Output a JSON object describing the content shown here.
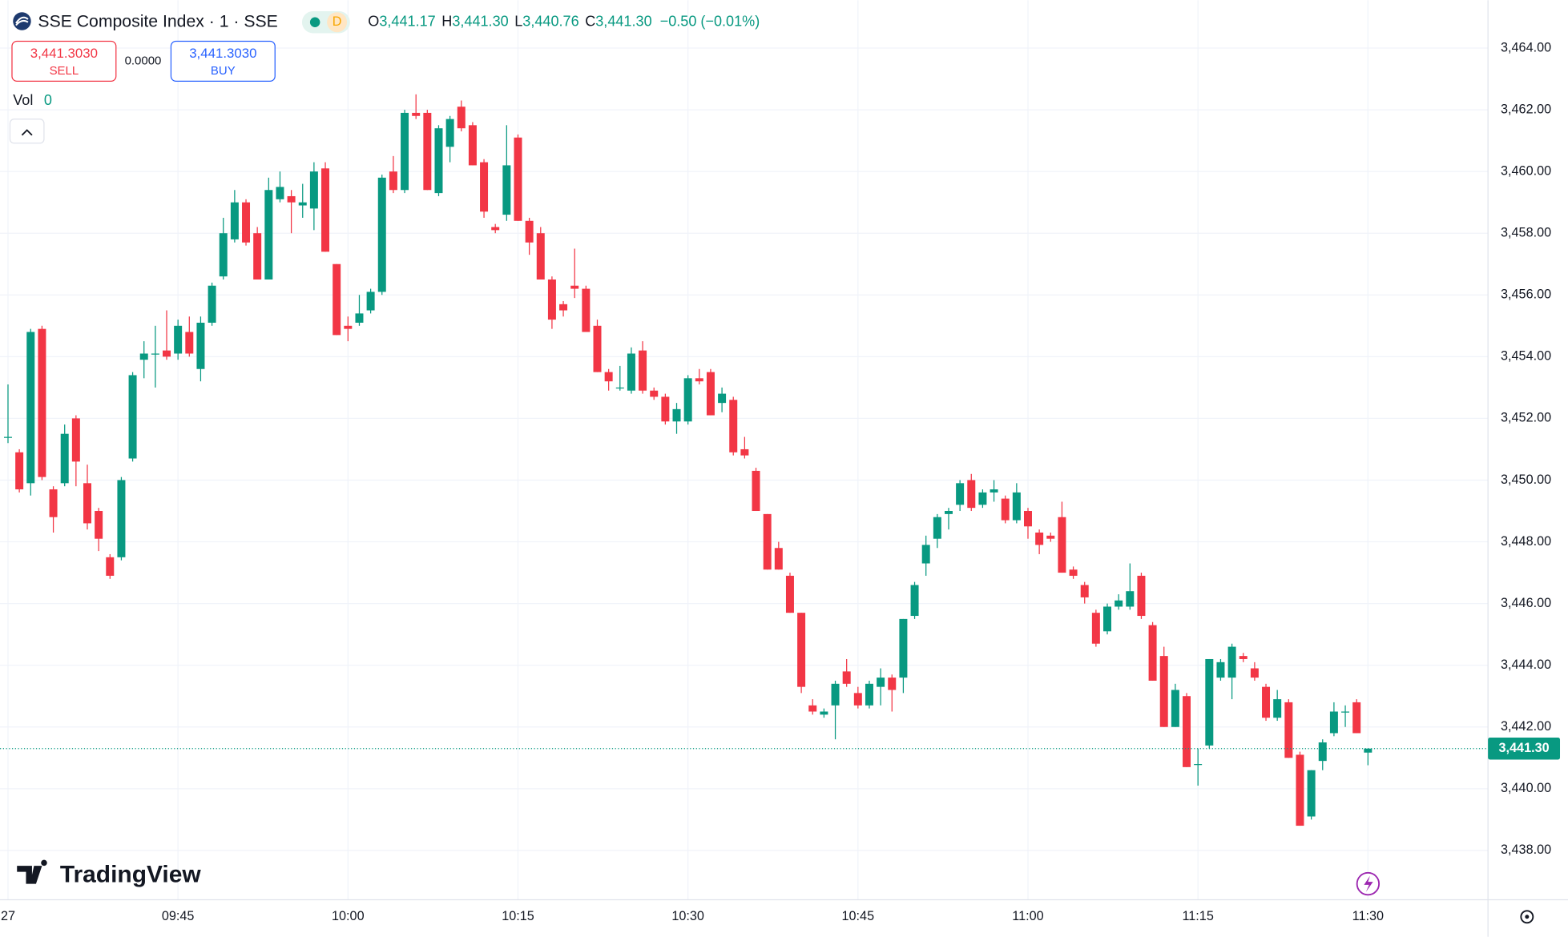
{
  "chart_data": {
    "type": "candlestick",
    "title": "SSE Composite Index · 1 · SSE",
    "interval_badge": "D",
    "legend": {
      "labels": [
        "O",
        "H",
        "L",
        "C"
      ],
      "values": [
        "3,441.17",
        "3,441.30",
        "3,440.76",
        "3,441.30"
      ],
      "change": "−0.50 (−0.01%)"
    },
    "sell": {
      "price": "3,441.3030",
      "label": "SELL"
    },
    "spread": "0.0000",
    "buy": {
      "price": "3,441.3030",
      "label": "BUY"
    },
    "volume": {
      "label": "Vol",
      "value": 0
    },
    "logo": "TradingView",
    "up_color": "#089981",
    "down_color": "#f23645",
    "grid": true,
    "ylim": [
      3436.4,
      3465.55
    ],
    "yticks": [
      {
        "value": 3438,
        "label": "3,438.00"
      },
      {
        "value": 3440,
        "label": "3,440.00"
      },
      {
        "value": 3442,
        "label": "3,442.00"
      },
      {
        "value": 3444,
        "label": "3,444.00"
      },
      {
        "value": 3446,
        "label": "3,446.00"
      },
      {
        "value": 3448,
        "label": "3,448.00"
      },
      {
        "value": 3450,
        "label": "3,450.00"
      },
      {
        "value": 3452,
        "label": "3,452.00"
      },
      {
        "value": 3454,
        "label": "3,454.00"
      },
      {
        "value": 3456,
        "label": "3,456.00"
      },
      {
        "value": 3458,
        "label": "3,458.00"
      },
      {
        "value": 3460,
        "label": "3,460.00"
      },
      {
        "value": 3462,
        "label": "3,462.00"
      },
      {
        "value": 3464,
        "label": "3,464.00"
      }
    ],
    "xticks": [
      {
        "value": "09:30",
        "label": "27"
      },
      "09:45",
      "10:00",
      "10:15",
      "10:30",
      "10:45",
      "11:00",
      "11:15",
      "11:30"
    ],
    "last_price": {
      "value": 3441.3,
      "label": "3,441.30"
    },
    "x": [
      "09:30",
      "09:31",
      "09:32",
      "09:33",
      "09:34",
      "09:35",
      "09:36",
      "09:37",
      "09:38",
      "09:39",
      "09:40",
      "09:41",
      "09:42",
      "09:43",
      "09:44",
      "09:45",
      "09:46",
      "09:47",
      "09:48",
      "09:49",
      "09:50",
      "09:51",
      "09:52",
      "09:53",
      "09:54",
      "09:55",
      "09:56",
      "09:57",
      "09:58",
      "09:59",
      "10:00",
      "10:01",
      "10:02",
      "10:03",
      "10:04",
      "10:05",
      "10:06",
      "10:07",
      "10:08",
      "10:09",
      "10:10",
      "10:11",
      "10:12",
      "10:13",
      "10:14",
      "10:15",
      "10:16",
      "10:17",
      "10:18",
      "10:19",
      "10:20",
      "10:21",
      "10:22",
      "10:23",
      "10:24",
      "10:25",
      "10:26",
      "10:27",
      "10:28",
      "10:29",
      "10:30",
      "10:31",
      "10:32",
      "10:33",
      "10:34",
      "10:35",
      "10:36",
      "10:37",
      "10:38",
      "10:39",
      "10:40",
      "10:41",
      "10:42",
      "10:43",
      "10:44",
      "10:45",
      "10:46",
      "10:47",
      "10:48",
      "10:49",
      "10:50",
      "10:51",
      "10:52",
      "10:53",
      "10:54",
      "10:55",
      "10:56",
      "10:57",
      "10:58",
      "10:59",
      "11:00",
      "11:01",
      "11:02",
      "11:03",
      "11:04",
      "11:05",
      "11:06",
      "11:07",
      "11:08",
      "11:09",
      "11:10",
      "11:11",
      "11:12",
      "11:13",
      "11:14",
      "11:15",
      "11:16",
      "11:17",
      "11:18",
      "11:19",
      "11:20",
      "11:21",
      "11:22",
      "11:23",
      "11:24",
      "11:25",
      "11:26",
      "11:27",
      "11:28",
      "11:29",
      "11:30"
    ],
    "open": [
      3451.4,
      3450.9,
      3449.9,
      3454.9,
      3449.7,
      3449.9,
      3452.0,
      3449.9,
      3449.0,
      3447.5,
      3447.5,
      3450.7,
      3453.9,
      3454.1,
      3454.2,
      3454.1,
      3454.8,
      3453.6,
      3455.1,
      3456.6,
      3457.8,
      3459.0,
      3458.0,
      3456.5,
      3459.1,
      3459.2,
      3458.9,
      3458.8,
      3460.1,
      3457.0,
      3455.0,
      3455.1,
      3455.5,
      3456.1,
      3460.0,
      3459.4,
      3461.9,
      3461.9,
      3459.3,
      3460.8,
      3462.1,
      3461.5,
      3460.3,
      3458.2,
      3458.6,
      3461.1,
      3458.4,
      3458.0,
      3456.5,
      3455.7,
      3456.3,
      3456.2,
      3455.0,
      3453.5,
      3453.0,
      3452.9,
      3454.2,
      3452.9,
      3452.7,
      3451.9,
      3451.9,
      3453.3,
      3453.5,
      3452.5,
      3452.6,
      3451.0,
      3450.3,
      3448.9,
      3447.8,
      3446.9,
      3445.7,
      3442.7,
      3442.4,
      3442.7,
      3443.8,
      3443.1,
      3442.7,
      3443.3,
      3443.6,
      3443.6,
      3445.6,
      3447.3,
      3448.1,
      3448.9,
      3449.2,
      3450.0,
      3449.2,
      3449.6,
      3449.4,
      3448.7,
      3449.0,
      3448.3,
      3448.2,
      3448.8,
      3447.1,
      3446.6,
      3445.7,
      3445.1,
      3445.9,
      3445.9,
      3446.9,
      3445.3,
      3444.3,
      3442.0,
      3443.0,
      3440.8,
      3441.4,
      3443.6,
      3443.6,
      3444.3,
      3443.9,
      3443.3,
      3442.3,
      3442.8,
      3441.1,
      3439.1,
      3440.9,
      3441.8,
      3442.5,
      3442.8,
      3441.17
    ],
    "high": [
      3453.1,
      3451.0,
      3454.9,
      3455.0,
      3449.8,
      3451.8,
      3452.1,
      3450.5,
      3449.1,
      3447.6,
      3450.1,
      3453.5,
      3454.5,
      3455.0,
      3455.5,
      3455.2,
      3455.3,
      3455.3,
      3456.4,
      3458.5,
      3459.4,
      3459.1,
      3458.2,
      3459.8,
      3460.0,
      3459.4,
      3459.6,
      3460.3,
      3460.3,
      3457.0,
      3455.3,
      3456.0,
      3456.2,
      3459.9,
      3460.5,
      3462.0,
      3462.5,
      3462.0,
      3461.5,
      3461.8,
      3462.3,
      3461.6,
      3460.4,
      3458.3,
      3461.5,
      3461.2,
      3458.5,
      3458.2,
      3456.6,
      3455.8,
      3457.5,
      3456.3,
      3455.2,
      3453.6,
      3453.7,
      3454.3,
      3454.5,
      3453.0,
      3452.8,
      3452.5,
      3453.4,
      3453.6,
      3453.6,
      3453.0,
      3452.7,
      3451.4,
      3450.4,
      3448.9,
      3448.0,
      3447.0,
      3445.7,
      3442.9,
      3442.6,
      3443.5,
      3444.2,
      3443.3,
      3443.5,
      3443.9,
      3443.7,
      3445.5,
      3446.7,
      3448.2,
      3448.9,
      3449.1,
      3450.0,
      3450.2,
      3449.7,
      3450.0,
      3449.5,
      3449.9,
      3449.1,
      3448.4,
      3448.3,
      3449.3,
      3447.2,
      3446.7,
      3445.8,
      3446.0,
      3446.3,
      3447.3,
      3447.0,
      3445.4,
      3444.6,
      3443.4,
      3443.1,
      3441.3,
      3444.2,
      3444.2,
      3444.7,
      3444.4,
      3444.1,
      3443.4,
      3443.2,
      3442.9,
      3441.2,
      3440.6,
      3441.6,
      3442.8,
      3442.7,
      3442.9,
      3441.3
    ],
    "low": [
      3451.2,
      3449.6,
      3449.5,
      3450.0,
      3448.3,
      3449.8,
      3449.8,
      3448.4,
      3447.7,
      3446.8,
      3447.4,
      3450.6,
      3453.3,
      3453.0,
      3453.9,
      3453.9,
      3454.0,
      3453.2,
      3455.0,
      3456.5,
      3457.7,
      3457.6,
      3456.5,
      3456.5,
      3459.0,
      3458.0,
      3458.5,
      3458.1,
      3457.4,
      3454.7,
      3454.5,
      3455.0,
      3455.4,
      3456.0,
      3459.3,
      3459.3,
      3461.7,
      3459.4,
      3459.2,
      3460.3,
      3461.3,
      3460.2,
      3458.5,
      3458.0,
      3458.4,
      3458.4,
      3457.3,
      3456.5,
      3454.9,
      3455.3,
      3455.9,
      3454.8,
      3453.5,
      3452.9,
      3452.9,
      3452.8,
      3452.8,
      3452.6,
      3451.8,
      3451.5,
      3451.8,
      3453.1,
      3452.1,
      3452.2,
      3450.8,
      3450.7,
      3449.0,
      3447.1,
      3447.1,
      3445.7,
      3443.1,
      3442.4,
      3442.3,
      3441.6,
      3443.3,
      3442.6,
      3442.6,
      3442.7,
      3442.5,
      3443.1,
      3445.5,
      3446.9,
      3447.8,
      3448.4,
      3449.0,
      3449.0,
      3449.1,
      3449.3,
      3448.6,
      3448.6,
      3448.1,
      3447.6,
      3448.0,
      3447.0,
      3446.8,
      3446.0,
      3444.6,
      3445.0,
      3445.8,
      3445.8,
      3445.5,
      3443.5,
      3442.0,
      3442.0,
      3440.7,
      3440.1,
      3441.3,
      3443.5,
      3442.9,
      3444.1,
      3443.5,
      3442.2,
      3442.2,
      3441.0,
      3438.8,
      3439.0,
      3440.6,
      3441.7,
      3442.0,
      3441.8,
      3440.76
    ],
    "close": [
      3451.4,
      3449.7,
      3454.8,
      3450.1,
      3448.8,
      3451.5,
      3450.6,
      3448.6,
      3448.1,
      3446.9,
      3450.0,
      3453.4,
      3454.1,
      3454.1,
      3454.0,
      3455.0,
      3454.1,
      3455.1,
      3456.3,
      3458.0,
      3459.0,
      3457.7,
      3456.5,
      3459.4,
      3459.5,
      3459.0,
      3459.0,
      3460.0,
      3457.4,
      3454.7,
      3454.9,
      3455.4,
      3456.1,
      3459.8,
      3459.4,
      3461.9,
      3461.8,
      3459.4,
      3461.4,
      3461.7,
      3461.4,
      3460.2,
      3458.7,
      3458.1,
      3460.2,
      3458.4,
      3457.7,
      3456.5,
      3455.2,
      3455.5,
      3456.2,
      3454.8,
      3453.5,
      3453.2,
      3453.0,
      3454.1,
      3452.9,
      3452.7,
      3451.9,
      3452.3,
      3453.3,
      3453.2,
      3452.1,
      3452.8,
      3450.9,
      3450.8,
      3449.0,
      3447.1,
      3447.1,
      3445.7,
      3443.3,
      3442.5,
      3442.5,
      3443.4,
      3443.4,
      3442.7,
      3443.4,
      3443.6,
      3443.2,
      3445.5,
      3446.6,
      3447.9,
      3448.8,
      3449.0,
      3449.9,
      3449.1,
      3449.6,
      3449.7,
      3448.7,
      3449.6,
      3448.5,
      3447.9,
      3448.1,
      3447.0,
      3446.9,
      3446.2,
      3444.7,
      3445.9,
      3446.1,
      3446.4,
      3445.6,
      3443.5,
      3442.0,
      3443.2,
      3440.7,
      3440.8,
      3444.2,
      3444.1,
      3444.6,
      3444.2,
      3443.6,
      3442.3,
      3442.9,
      3441.0,
      3438.8,
      3440.6,
      3441.5,
      3442.5,
      3442.5,
      3441.8,
      3441.3
    ]
  }
}
